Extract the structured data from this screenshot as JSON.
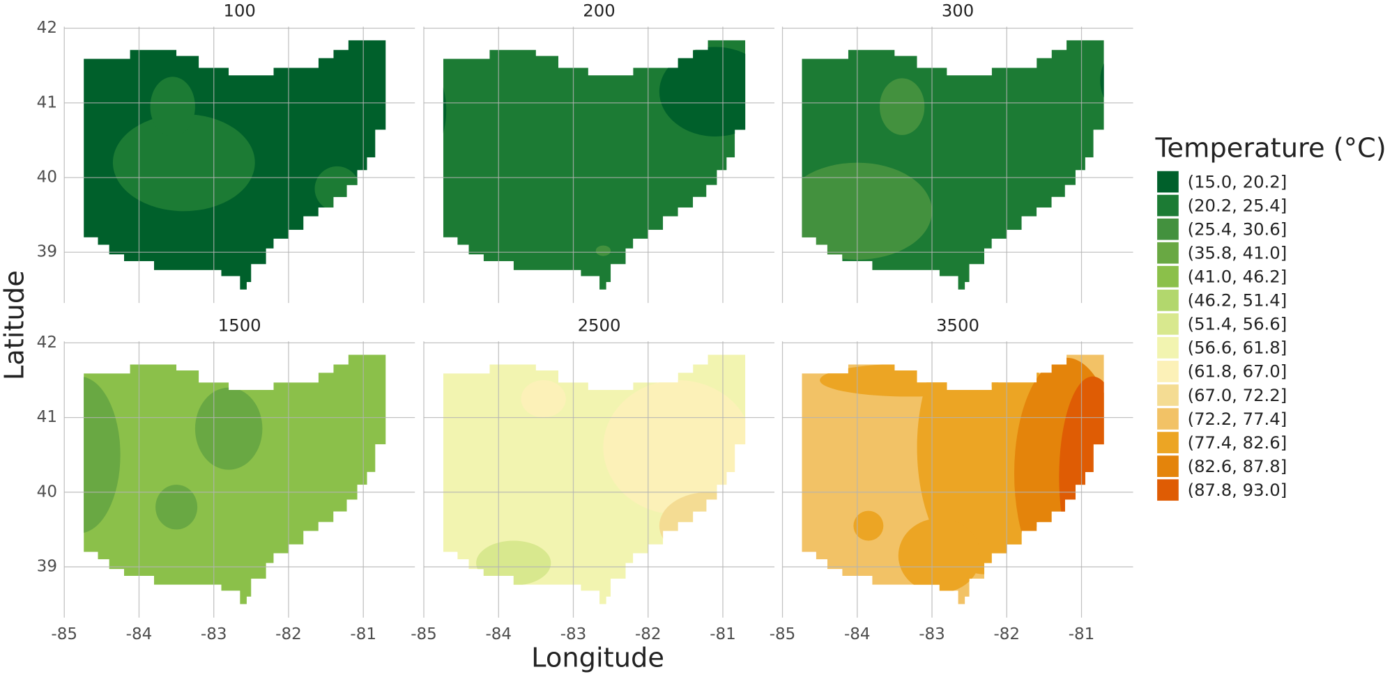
{
  "chart_data": {
    "type": "contour",
    "facets": [
      "100",
      "200",
      "300",
      "1500",
      "2500",
      "3500"
    ],
    "xlabel": "Longitude",
    "ylabel": "Latitude",
    "xlim": [
      -85,
      -80.31
    ],
    "ylim": [
      38.32,
      42.02
    ],
    "xticks": [
      -85,
      -84,
      -83,
      -82,
      -81
    ],
    "yticks": [
      39,
      40,
      41,
      42
    ],
    "grid": true,
    "legend": {
      "title": "Temperature (°C)",
      "categories": [
        "(15.0, 20.2]",
        "(20.2, 25.4]",
        "(25.4, 30.6]",
        "(35.8, 41.0]",
        "(41.0, 46.2]",
        "(46.2, 51.4]",
        "(51.4, 56.6]",
        "(56.6, 61.8]",
        "(61.8, 67.0]",
        "(67.0, 72.2]",
        "(72.2, 77.4]",
        "(77.4, 82.6]",
        "(82.6, 87.8]",
        "(87.8, 93.0]"
      ],
      "colors": [
        "#00602b",
        "#1c7b34",
        "#43913e",
        "#69a843",
        "#8bc04a",
        "#b2d76d",
        "#d8e88e",
        "#f2f4b0",
        "#fcf1b8",
        "#f4dc93",
        "#f2c266",
        "#eca524",
        "#e4840b",
        "#df5c04"
      ]
    }
  }
}
